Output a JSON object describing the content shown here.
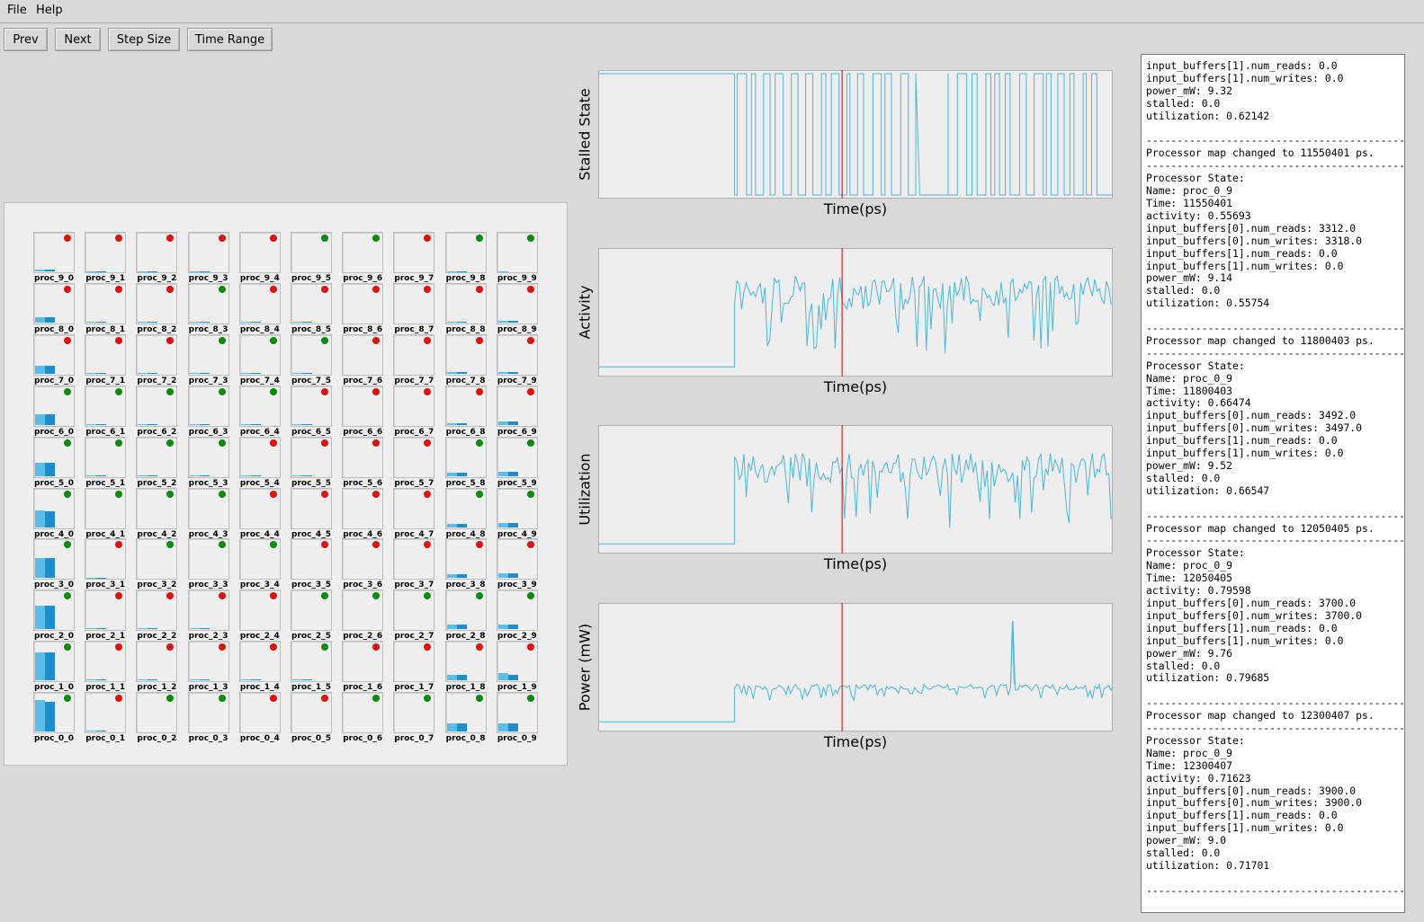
{
  "menu": {
    "file": "File",
    "help": "Help"
  },
  "toolbar": {
    "prev": "Prev",
    "next": "Next",
    "step_size": "Step Size",
    "time_range": "Time Range"
  },
  "colors": {
    "running": "#0b8a0b",
    "stalled": "#e01010",
    "line": "#4ab8d8",
    "marker": "#cc0000"
  },
  "grid": {
    "cells": [
      {
        "name": "proc_9_0",
        "status": "stalled",
        "b1": 0.04,
        "b2": 0.04
      },
      {
        "name": "proc_9_1",
        "status": "stalled",
        "b1": 0.01,
        "b2": 0.01
      },
      {
        "name": "proc_9_2",
        "status": "stalled",
        "b1": 0.01,
        "b2": 0.01
      },
      {
        "name": "proc_9_3",
        "status": "stalled",
        "b1": 0.01,
        "b2": 0.01
      },
      {
        "name": "proc_9_4",
        "status": "stalled",
        "b1": 0,
        "b2": 0
      },
      {
        "name": "proc_9_5",
        "status": "running",
        "b1": 0,
        "b2": 0
      },
      {
        "name": "proc_9_6",
        "status": "running",
        "b1": 0,
        "b2": 0
      },
      {
        "name": "proc_9_7",
        "status": "stalled",
        "b1": 0,
        "b2": 0
      },
      {
        "name": "proc_9_8",
        "status": "running",
        "b1": 0.01,
        "b2": 0.01
      },
      {
        "name": "proc_9_9",
        "status": "running",
        "b1": 0.01,
        "b2": 0
      },
      {
        "name": "proc_8_0",
        "status": "stalled",
        "b1": 0.13,
        "b2": 0.13
      },
      {
        "name": "proc_8_1",
        "status": "stalled",
        "b1": 0.01,
        "b2": 0.01
      },
      {
        "name": "proc_8_2",
        "status": "stalled",
        "b1": 0.01,
        "b2": 0.01
      },
      {
        "name": "proc_8_3",
        "status": "running",
        "b1": 0.01,
        "b2": 0.01
      },
      {
        "name": "proc_8_4",
        "status": "stalled",
        "b1": 0.01,
        "b2": 0.01
      },
      {
        "name": "proc_8_5",
        "status": "stalled",
        "b1": 0.01,
        "b2": 0.01
      },
      {
        "name": "proc_8_6",
        "status": "stalled",
        "b1": 0,
        "b2": 0
      },
      {
        "name": "proc_8_7",
        "status": "stalled",
        "b1": 0,
        "b2": 0
      },
      {
        "name": "proc_8_8",
        "status": "stalled",
        "b1": 0.02,
        "b2": 0.02
      },
      {
        "name": "proc_8_9",
        "status": "stalled",
        "b1": 0.04,
        "b2": 0.04
      },
      {
        "name": "proc_7_0",
        "status": "stalled",
        "b1": 0.2,
        "b2": 0.2
      },
      {
        "name": "proc_7_1",
        "status": "stalled",
        "b1": 0.01,
        "b2": 0.01
      },
      {
        "name": "proc_7_2",
        "status": "stalled",
        "b1": 0.01,
        "b2": 0.01
      },
      {
        "name": "proc_7_3",
        "status": "running",
        "b1": 0.01,
        "b2": 0.01
      },
      {
        "name": "proc_7_4",
        "status": "running",
        "b1": 0.01,
        "b2": 0.01
      },
      {
        "name": "proc_7_5",
        "status": "running",
        "b1": 0.01,
        "b2": 0.01
      },
      {
        "name": "proc_7_6",
        "status": "stalled",
        "b1": 0,
        "b2": 0
      },
      {
        "name": "proc_7_7",
        "status": "stalled",
        "b1": 0,
        "b2": 0
      },
      {
        "name": "proc_7_8",
        "status": "stalled",
        "b1": 0.03,
        "b2": 0.03
      },
      {
        "name": "proc_7_9",
        "status": "stalled",
        "b1": 0.04,
        "b2": 0.04
      },
      {
        "name": "proc_6_0",
        "status": "running",
        "b1": 0.26,
        "b2": 0.26
      },
      {
        "name": "proc_6_1",
        "status": "running",
        "b1": 0.02,
        "b2": 0.02
      },
      {
        "name": "proc_6_2",
        "status": "running",
        "b1": 0.02,
        "b2": 0.02
      },
      {
        "name": "proc_6_3",
        "status": "running",
        "b1": 0.01,
        "b2": 0.01
      },
      {
        "name": "proc_6_4",
        "status": "running",
        "b1": 0.01,
        "b2": 0.01
      },
      {
        "name": "proc_6_5",
        "status": "stalled",
        "b1": 0.01,
        "b2": 0.01
      },
      {
        "name": "proc_6_6",
        "status": "stalled",
        "b1": 0,
        "b2": 0
      },
      {
        "name": "proc_6_7",
        "status": "stalled",
        "b1": 0,
        "b2": 0
      },
      {
        "name": "proc_6_8",
        "status": "stalled",
        "b1": 0.04,
        "b2": 0.04
      },
      {
        "name": "proc_6_9",
        "status": "stalled",
        "b1": 0.08,
        "b2": 0.08
      },
      {
        "name": "proc_5_0",
        "status": "running",
        "b1": 0.33,
        "b2": 0.33
      },
      {
        "name": "proc_5_1",
        "status": "running",
        "b1": 0.02,
        "b2": 0.02
      },
      {
        "name": "proc_5_2",
        "status": "running",
        "b1": 0.02,
        "b2": 0.02
      },
      {
        "name": "proc_5_3",
        "status": "running",
        "b1": 0.02,
        "b2": 0.02
      },
      {
        "name": "proc_5_4",
        "status": "stalled",
        "b1": 0.02,
        "b2": 0.02
      },
      {
        "name": "proc_5_5",
        "status": "stalled",
        "b1": 0.01,
        "b2": 0.01
      },
      {
        "name": "proc_5_6",
        "status": "stalled",
        "b1": 0,
        "b2": 0
      },
      {
        "name": "proc_5_7",
        "status": "stalled",
        "b1": 0,
        "b2": 0
      },
      {
        "name": "proc_5_8",
        "status": "running",
        "b1": 0.08,
        "b2": 0.08
      },
      {
        "name": "proc_5_9",
        "status": "running",
        "b1": 0.1,
        "b2": 0.1
      },
      {
        "name": "proc_4_0",
        "status": "running",
        "b1": 0.43,
        "b2": 0.4
      },
      {
        "name": "proc_4_1",
        "status": "running",
        "b1": 0,
        "b2": 0
      },
      {
        "name": "proc_4_2",
        "status": "running",
        "b1": 0,
        "b2": 0
      },
      {
        "name": "proc_4_3",
        "status": "running",
        "b1": 0,
        "b2": 0
      },
      {
        "name": "proc_4_4",
        "status": "stalled",
        "b1": 0,
        "b2": 0
      },
      {
        "name": "proc_4_5",
        "status": "stalled",
        "b1": 0,
        "b2": 0
      },
      {
        "name": "proc_4_6",
        "status": "stalled",
        "b1": 0,
        "b2": 0
      },
      {
        "name": "proc_4_7",
        "status": "stalled",
        "b1": 0,
        "b2": 0
      },
      {
        "name": "proc_4_8",
        "status": "running",
        "b1": 0.09,
        "b2": 0.09
      },
      {
        "name": "proc_4_9",
        "status": "running",
        "b1": 0.1,
        "b2": 0.1
      },
      {
        "name": "proc_3_0",
        "status": "running",
        "b1": 0.5,
        "b2": 0.5
      },
      {
        "name": "proc_3_1",
        "status": "stalled",
        "b1": 0.02,
        "b2": 0.02
      },
      {
        "name": "proc_3_2",
        "status": "running",
        "b1": 0,
        "b2": 0
      },
      {
        "name": "proc_3_3",
        "status": "running",
        "b1": 0,
        "b2": 0
      },
      {
        "name": "proc_3_4",
        "status": "running",
        "b1": 0,
        "b2": 0
      },
      {
        "name": "proc_3_5",
        "status": "stalled",
        "b1": 0,
        "b2": 0
      },
      {
        "name": "proc_3_6",
        "status": "stalled",
        "b1": 0,
        "b2": 0
      },
      {
        "name": "proc_3_7",
        "status": "stalled",
        "b1": 0,
        "b2": 0
      },
      {
        "name": "proc_3_8",
        "status": "stalled",
        "b1": 0.1,
        "b2": 0.1
      },
      {
        "name": "proc_3_9",
        "status": "stalled",
        "b1": 0.12,
        "b2": 0.12
      },
      {
        "name": "proc_2_0",
        "status": "running",
        "b1": 0.6,
        "b2": 0.6
      },
      {
        "name": "proc_2_1",
        "status": "stalled",
        "b1": 0.02,
        "b2": 0.02
      },
      {
        "name": "proc_2_2",
        "status": "stalled",
        "b1": 0.02,
        "b2": 0.02
      },
      {
        "name": "proc_2_3",
        "status": "stalled",
        "b1": 0.02,
        "b2": 0.02
      },
      {
        "name": "proc_2_4",
        "status": "stalled",
        "b1": 0,
        "b2": 0
      },
      {
        "name": "proc_2_5",
        "status": "running",
        "b1": 0,
        "b2": 0
      },
      {
        "name": "proc_2_6",
        "status": "running",
        "b1": 0,
        "b2": 0
      },
      {
        "name": "proc_2_7",
        "status": "running",
        "b1": 0,
        "b2": 0
      },
      {
        "name": "proc_2_8",
        "status": "running",
        "b1": 0.12,
        "b2": 0.12
      },
      {
        "name": "proc_2_9",
        "status": "running",
        "b1": 0.12,
        "b2": 0.12
      },
      {
        "name": "proc_1_0",
        "status": "running",
        "b1": 0.72,
        "b2": 0.72
      },
      {
        "name": "proc_1_1",
        "status": "stalled",
        "b1": 0.02,
        "b2": 0.02
      },
      {
        "name": "proc_1_2",
        "status": "stalled",
        "b1": 0.02,
        "b2": 0.02
      },
      {
        "name": "proc_1_3",
        "status": "stalled",
        "b1": 0.02,
        "b2": 0.02
      },
      {
        "name": "proc_1_4",
        "status": "stalled",
        "b1": 0.02,
        "b2": 0.02
      },
      {
        "name": "proc_1_5",
        "status": "running",
        "b1": 0.02,
        "b2": 0.02
      },
      {
        "name": "proc_1_6",
        "status": "stalled",
        "b1": 0,
        "b2": 0
      },
      {
        "name": "proc_1_7",
        "status": "stalled",
        "b1": 0,
        "b2": 0
      },
      {
        "name": "proc_1_8",
        "status": "stalled",
        "b1": 0.15,
        "b2": 0.15
      },
      {
        "name": "proc_1_9",
        "status": "stalled",
        "b1": 0.18,
        "b2": 0.15
      },
      {
        "name": "proc_0_0",
        "status": "running",
        "b1": 0.8,
        "b2": 0.75
      },
      {
        "name": "proc_0_1",
        "status": "stalled",
        "b1": 0.02,
        "b2": 0.02
      },
      {
        "name": "proc_0_2",
        "status": "running",
        "b1": 0,
        "b2": 0
      },
      {
        "name": "proc_0_3",
        "status": "running",
        "b1": 0,
        "b2": 0
      },
      {
        "name": "proc_0_4",
        "status": "stalled",
        "b1": 0,
        "b2": 0
      },
      {
        "name": "proc_0_5",
        "status": "stalled",
        "b1": 0,
        "b2": 0
      },
      {
        "name": "proc_0_6",
        "status": "running",
        "b1": 0,
        "b2": 0
      },
      {
        "name": "proc_0_7",
        "status": "running",
        "b1": 0,
        "b2": 0
      },
      {
        "name": "proc_0_8",
        "status": "running",
        "b1": 0.2,
        "b2": 0.2
      },
      {
        "name": "proc_0_9",
        "status": "running",
        "b1": 0.2,
        "b2": 0.2
      }
    ]
  },
  "chart_data": [
    {
      "type": "line",
      "ylabel": "Stalled State",
      "xlabel": "Time(ps)",
      "ylim": [
        0,
        1
      ],
      "grid": false,
      "marker_fraction": 0.474,
      "segments": [
        {
          "from": 0.0,
          "to": 0.265,
          "kind": "const",
          "y": 1.0
        },
        {
          "from": 0.265,
          "to": 0.625,
          "kind": "toggle",
          "density": 1.0
        },
        {
          "from": 0.625,
          "to": 0.63,
          "kind": "const",
          "y": 0.0
        },
        {
          "from": 0.63,
          "to": 0.68,
          "kind": "const",
          "y": 0.0
        },
        {
          "from": 0.68,
          "to": 0.98,
          "kind": "toggle",
          "density": 1.0
        }
      ]
    },
    {
      "type": "line",
      "ylabel": "Activity",
      "xlabel": "Time(ps)",
      "ylim": [
        0,
        1
      ],
      "grid": false,
      "marker_fraction": 0.474,
      "base_level": 0.05,
      "active_from": 0.265,
      "active_level": 0.72,
      "spike": null
    },
    {
      "type": "line",
      "ylabel": "Utilization",
      "xlabel": "Time(ps)",
      "ylim": [
        0,
        1
      ],
      "grid": false,
      "marker_fraction": 0.474,
      "base_level": 0.05,
      "active_from": 0.265,
      "active_level": 0.72,
      "spike": null
    },
    {
      "type": "line",
      "ylabel": "Power (mW)",
      "xlabel": "Time(ps)",
      "ylim": [
        0,
        1
      ],
      "grid": false,
      "marker_fraction": 0.474,
      "base_level": 0.05,
      "active_from": 0.265,
      "active_level": 0.36,
      "spike": {
        "at": 0.805,
        "y": 0.88
      }
    }
  ],
  "log_text": "input_buffers[1].num_reads: 0.0\ninput_buffers[1].num_writes: 0.0\npower_mW: 9.32\nstalled: 0.0\nutilization: 0.62142\n\n-------------------------------------------\nProcessor map changed to 11550401 ps.\n-------------------------------------------\nProcessor State:\nName: proc_0_9\nTime: 11550401\nactivity: 0.55693\ninput_buffers[0].num_reads: 3312.0\ninput_buffers[0].num_writes: 3318.0\ninput_buffers[1].num_reads: 0.0\ninput_buffers[1].num_writes: 0.0\npower_mW: 9.14\nstalled: 0.0\nutilization: 0.55754\n\n-------------------------------------------\nProcessor map changed to 11800403 ps.\n-------------------------------------------\nProcessor State:\nName: proc_0_9\nTime: 11800403\nactivity: 0.66474\ninput_buffers[0].num_reads: 3492.0\ninput_buffers[0].num_writes: 3497.0\ninput_buffers[1].num_reads: 0.0\ninput_buffers[1].num_writes: 0.0\npower_mW: 9.52\nstalled: 0.0\nutilization: 0.66547\n\n-------------------------------------------\nProcessor map changed to 12050405 ps.\n-------------------------------------------\nProcessor State:\nName: proc_0_9\nTime: 12050405\nactivity: 0.79598\ninput_buffers[0].num_reads: 3700.0\ninput_buffers[0].num_writes: 3700.0\ninput_buffers[1].num_reads: 0.0\ninput_buffers[1].num_writes: 0.0\npower_mW: 9.76\nstalled: 0.0\nutilization: 0.79685\n\n-------------------------------------------\nProcessor map changed to 12300407 ps.\n-------------------------------------------\nProcessor State:\nName: proc_0_9\nTime: 12300407\nactivity: 0.71623\ninput_buffers[0].num_reads: 3900.0\ninput_buffers[0].num_writes: 3900.0\ninput_buffers[1].num_reads: 0.0\ninput_buffers[1].num_writes: 0.0\npower_mW: 9.0\nstalled: 0.0\nutilization: 0.71701\n\n-------------------------------------------"
}
